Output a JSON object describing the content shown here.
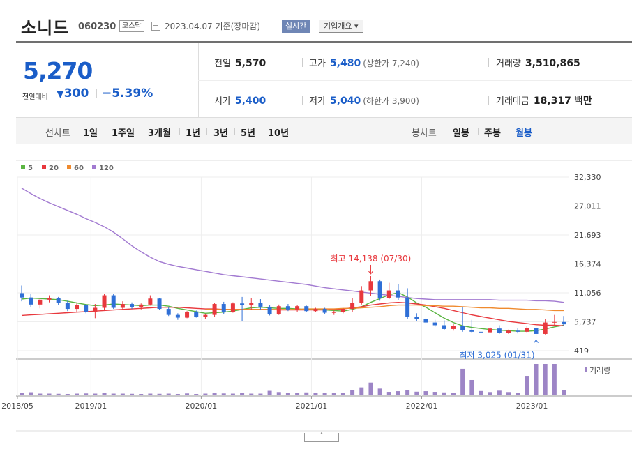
{
  "header": {
    "name": "소니드",
    "code": "060230",
    "market_badge": "코스닥",
    "date_text": "2023.04.07 기준(장마감)",
    "realtime_button": "실시간",
    "corp_button": "기업개요",
    "corp_button_arrow": "▾",
    "calendar_icon": "calendar-icon"
  },
  "quote": {
    "price": "5,270",
    "compare_label": "전일대비",
    "change_arrow": "▼",
    "change": "300",
    "sep": "|",
    "rate": "−5.39%",
    "prev_close_label": "전일",
    "prev_close": "5,570",
    "open_label": "시가",
    "open": "5,400",
    "high_label": "고가",
    "high": "5,480",
    "upper_limit": "(상한가 7,240)",
    "low_label": "저가",
    "low": "5,040",
    "lower_limit": "(하한가 3,900)",
    "volume_label": "거래량",
    "volume": "3,510,865",
    "amount_label": "거래대금",
    "amount": "18,317",
    "amount_unit": "백만"
  },
  "tabs": {
    "line_title": "선차트",
    "periods": [
      "1일",
      "1주일",
      "3개월",
      "1년",
      "3년",
      "5년",
      "10년"
    ],
    "candle_title": "봉차트",
    "candles": [
      "일봉",
      "주봉",
      "월봉"
    ],
    "active_candle": "월봉"
  },
  "colors": {
    "accent_blue": "#1a5dc8",
    "up_red": "#e8383d",
    "down_blue": "#2f6fd6",
    "ma5": "#5bb542",
    "ma20": "#e8383d",
    "ma60": "#ef8a2e",
    "ma120": "#a27ad1",
    "volume": "#9d85c6"
  },
  "more_button": "˄",
  "chart_data": {
    "type": "candlestick",
    "legend": [
      {
        "name": "5",
        "color": "#5bb542"
      },
      {
        "name": "20",
        "color": "#e8383d"
      },
      {
        "name": "60",
        "color": "#ef8a2e"
      },
      {
        "name": "120",
        "color": "#a27ad1"
      }
    ],
    "y_ticks": [
      "32,330",
      "27,011",
      "21,693",
      "16,374",
      "11,056",
      "5,737",
      "419"
    ],
    "ylim": [
      419,
      32330
    ],
    "x_ticks": [
      {
        "label": "2018/05",
        "month": 0
      },
      {
        "label": "2019/01",
        "month": 8
      },
      {
        "label": "2020/01",
        "month": 20
      },
      {
        "label": "2021/01",
        "month": 32
      },
      {
        "label": "2022/01",
        "month": 44
      },
      {
        "label": "2023/01",
        "month": 56
      }
    ],
    "month_count": 60,
    "annotations": {
      "high": {
        "label": "최고 14,138 (07/30)",
        "month": 38,
        "value": 14138
      },
      "low": {
        "label": "최저 3,025 (01/31)",
        "month": 56,
        "value": 3025
      }
    },
    "volume_label": "거래량",
    "candles": [
      [
        11000,
        12400,
        9500,
        10200
      ],
      [
        10200,
        10800,
        8400,
        8900
      ],
      [
        8900,
        10100,
        8200,
        9800
      ],
      [
        9800,
        10600,
        9300,
        10100
      ],
      [
        10100,
        10300,
        8800,
        9200
      ],
      [
        9200,
        9600,
        7700,
        8100
      ],
      [
        8100,
        9100,
        7600,
        8800
      ],
      [
        8800,
        9000,
        7300,
        7600
      ],
      [
        7600,
        9000,
        6400,
        8300
      ],
      [
        8300,
        10900,
        7900,
        10600
      ],
      [
        10600,
        10900,
        8100,
        8300
      ],
      [
        8300,
        9500,
        8000,
        9000
      ],
      [
        9000,
        9300,
        8100,
        8400
      ],
      [
        8400,
        9100,
        8000,
        8900
      ],
      [
        8900,
        10600,
        8700,
        10000
      ],
      [
        10000,
        10100,
        7900,
        8100
      ],
      [
        8100,
        8400,
        6800,
        7000
      ],
      [
        7000,
        7300,
        6100,
        6500
      ],
      [
        6500,
        7700,
        6400,
        7500
      ],
      [
        7500,
        7800,
        6500,
        6600
      ],
      [
        6600,
        7200,
        6200,
        7000
      ],
      [
        7000,
        9200,
        6700,
        9000
      ],
      [
        9000,
        9400,
        7200,
        7500
      ],
      [
        7500,
        9300,
        7400,
        9100
      ],
      [
        9100,
        10300,
        5900,
        8800
      ],
      [
        8800,
        10100,
        7900,
        9200
      ],
      [
        9200,
        9900,
        8000,
        8500
      ],
      [
        8500,
        8800,
        6900,
        7100
      ],
      [
        7100,
        8900,
        7000,
        8600
      ],
      [
        8600,
        9000,
        7700,
        8000
      ],
      [
        8000,
        8800,
        7600,
        8600
      ],
      [
        8600,
        8700,
        7500,
        7700
      ],
      [
        7700,
        8300,
        7500,
        8100
      ],
      [
        8100,
        8300,
        7100,
        7400
      ],
      [
        7400,
        7800,
        7000,
        7500
      ],
      [
        7500,
        8200,
        7300,
        8100
      ],
      [
        8100,
        10100,
        7500,
        9200
      ],
      [
        9200,
        12300,
        8900,
        11500
      ],
      [
        11500,
        14138,
        10500,
        13200
      ],
      [
        13200,
        13500,
        9600,
        10100
      ],
      [
        10100,
        12900,
        9900,
        11500
      ],
      [
        11500,
        12700,
        9700,
        10200
      ],
      [
        10200,
        11900,
        6300,
        6700
      ],
      [
        6700,
        7300,
        5900,
        6200
      ],
      [
        6200,
        6500,
        5200,
        5600
      ],
      [
        5600,
        6100,
        4800,
        5100
      ],
      [
        5100,
        6000,
        4200,
        4400
      ],
      [
        4400,
        5300,
        4100,
        5000
      ],
      [
        5000,
        8500,
        3900,
        4200
      ],
      [
        4200,
        6100,
        3700,
        3900
      ],
      [
        3900,
        4100,
        3600,
        3800
      ],
      [
        3800,
        4700,
        3700,
        4500
      ],
      [
        4500,
        5100,
        3500,
        3700
      ],
      [
        3700,
        4300,
        3500,
        4100
      ],
      [
        4100,
        4600,
        3600,
        3900
      ],
      [
        3900,
        4900,
        3700,
        4600
      ],
      [
        4600,
        4900,
        3025,
        3500
      ],
      [
        3500,
        6300,
        3400,
        5600
      ],
      [
        5600,
        7000,
        5000,
        5700
      ],
      [
        5700,
        6800,
        5000,
        5270
      ]
    ],
    "volumes": [
      120000,
      140000,
      60000,
      60000,
      50000,
      40000,
      60000,
      70000,
      60000,
      90000,
      60000,
      60000,
      50000,
      40000,
      60000,
      50000,
      60000,
      40000,
      70000,
      40000,
      60000,
      80000,
      70000,
      60000,
      90000,
      60000,
      60000,
      220000,
      150000,
      90000,
      100000,
      130000,
      90000,
      120000,
      80000,
      90000,
      260000,
      420000,
      700000,
      350000,
      160000,
      200000,
      260000,
      170000,
      200000,
      160000,
      130000,
      110000,
      1500000,
      850000,
      210000,
      150000,
      230000,
      150000,
      110000,
      1050000,
      1780000,
      1780000,
      1780000,
      250000
    ],
    "ma": {
      "5": [
        9900,
        10100,
        10000,
        9900,
        9800,
        9500,
        9200,
        8900,
        8700,
        8800,
        9000,
        8900,
        8800,
        8700,
        8800,
        8800,
        8600,
        8200,
        7900,
        7600,
        7300,
        7400,
        7500,
        7700,
        8000,
        8300,
        8400,
        8300,
        8200,
        8200,
        8100,
        8000,
        8000,
        7900,
        7800,
        7700,
        8000,
        8500,
        9300,
        10000,
        10700,
        11100,
        10300,
        9200,
        8400,
        7400,
        6400,
        5600,
        5000,
        4700,
        4500,
        4300,
        4200,
        4100,
        4000,
        4000,
        4100,
        4400,
        4800,
        5100
      ],
      "20": [
        6900,
        7000,
        7100,
        7200,
        7300,
        7400,
        7500,
        7600,
        7700,
        7800,
        7900,
        8000,
        8100,
        8200,
        8300,
        8400,
        8400,
        8400,
        8300,
        8200,
        8100,
        8100,
        8000,
        8000,
        8000,
        8000,
        8000,
        8000,
        7900,
        7900,
        7900,
        7900,
        7900,
        7900,
        8000,
        8100,
        8300,
        8500,
        8800,
        9000,
        9200,
        9300,
        9200,
        9000,
        8800,
        8500,
        8200,
        7800,
        7400,
        7000,
        6700,
        6400,
        6100,
        5800,
        5600,
        5400,
        5200,
        5100,
        5100,
        5000
      ],
      "60": [
        null,
        null,
        null,
        null,
        null,
        null,
        null,
        null,
        null,
        null,
        null,
        null,
        null,
        null,
        null,
        null,
        null,
        null,
        null,
        null,
        8000,
        8000,
        8000,
        8000,
        8000,
        8000,
        8000,
        8000,
        8000,
        8000,
        8000,
        8100,
        8100,
        8100,
        8100,
        8200,
        8200,
        8300,
        8400,
        8500,
        8700,
        8800,
        8800,
        8800,
        8700,
        8700,
        8600,
        8600,
        8500,
        8400,
        8300,
        8300,
        8200,
        8200,
        8100,
        8000,
        8000,
        7900,
        7800,
        7800
      ],
      "120": [
        30300,
        29300,
        28400,
        27600,
        26900,
        26200,
        25500,
        24700,
        24000,
        23200,
        22200,
        21000,
        19700,
        18600,
        17600,
        16800,
        16300,
        15900,
        15600,
        15300,
        15000,
        14700,
        14400,
        14200,
        14000,
        13800,
        13600,
        13400,
        13200,
        13000,
        12800,
        12600,
        12300,
        12000,
        11800,
        11600,
        11400,
        11200,
        11000,
        10800,
        10600,
        10400,
        10200,
        10000,
        9900,
        9800,
        9800,
        9800,
        9800,
        9800,
        9800,
        9800,
        9700,
        9700,
        9700,
        9700,
        9600,
        9600,
        9500,
        9300
      ]
    }
  }
}
